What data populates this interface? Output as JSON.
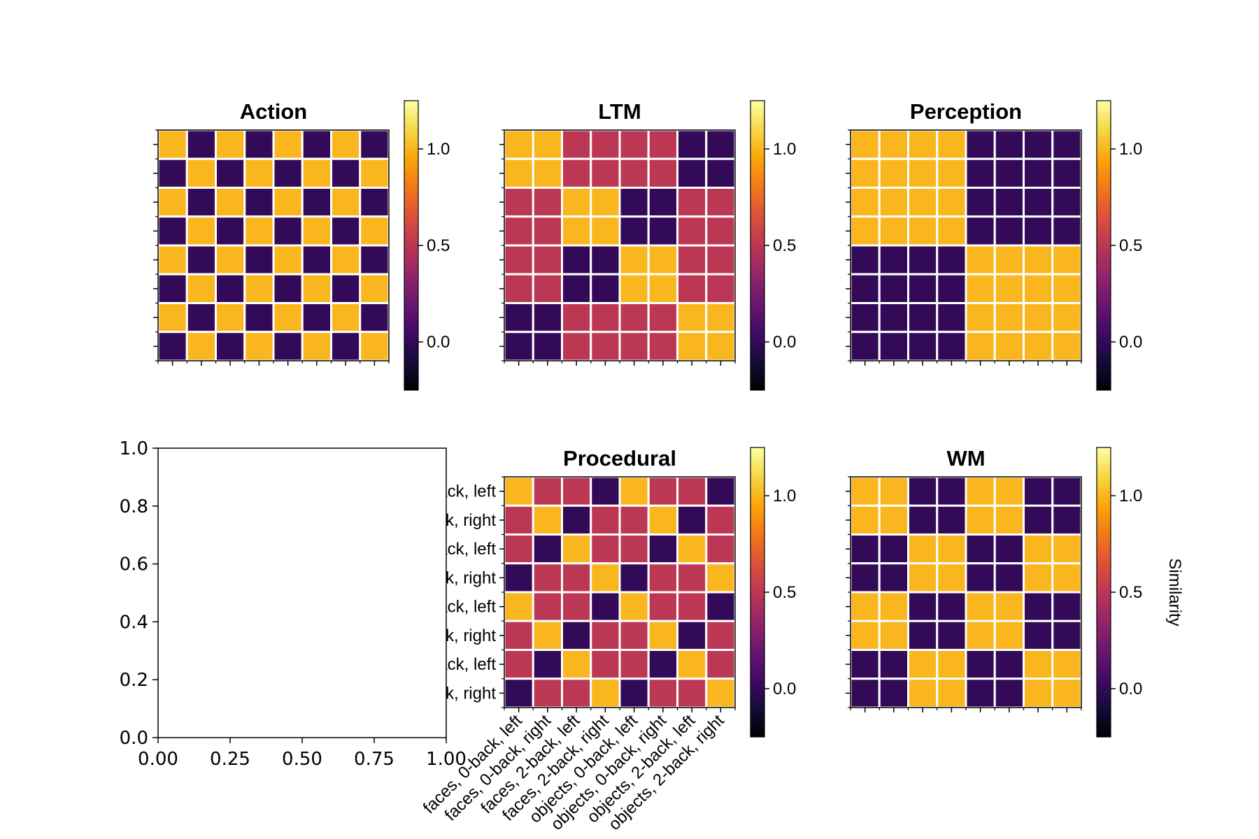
{
  "chart_data": [
    {
      "type": "heatmap",
      "title": "Action",
      "categories": [
        "faces, 0-back, left",
        "faces, 0-back, right",
        "faces, 2-back, left",
        "faces, 2-back, right",
        "objects, 0-back, left",
        "objects, 0-back, right",
        "objects, 2-back, left",
        "objects, 2-back, right"
      ],
      "values": [
        [
          1,
          0,
          1,
          0,
          1,
          0,
          1,
          0
        ],
        [
          0,
          1,
          0,
          1,
          0,
          1,
          0,
          1
        ],
        [
          1,
          0,
          1,
          0,
          1,
          0,
          1,
          0
        ],
        [
          0,
          1,
          0,
          1,
          0,
          1,
          0,
          1
        ],
        [
          1,
          0,
          1,
          0,
          1,
          0,
          1,
          0
        ],
        [
          0,
          1,
          0,
          1,
          0,
          1,
          0,
          1
        ],
        [
          1,
          0,
          1,
          0,
          1,
          0,
          1,
          0
        ],
        [
          0,
          1,
          0,
          1,
          0,
          1,
          0,
          1
        ]
      ],
      "colorbar": {
        "ticks": [
          "0.0",
          "0.5",
          "1.0"
        ],
        "ylim": [
          -0.25,
          1.25
        ],
        "label": ""
      }
    },
    {
      "type": "heatmap",
      "title": "LTM",
      "categories": [
        "faces, 0-back, left",
        "faces, 0-back, right",
        "faces, 2-back, left",
        "faces, 2-back, right",
        "objects, 0-back, left",
        "objects, 0-back, right",
        "objects, 2-back, left",
        "objects, 2-back, right"
      ],
      "values": [
        [
          1,
          1,
          0.5,
          0.5,
          0.5,
          0.5,
          0,
          0
        ],
        [
          1,
          1,
          0.5,
          0.5,
          0.5,
          0.5,
          0,
          0
        ],
        [
          0.5,
          0.5,
          1,
          1,
          0,
          0,
          0.5,
          0.5
        ],
        [
          0.5,
          0.5,
          1,
          1,
          0,
          0,
          0.5,
          0.5
        ],
        [
          0.5,
          0.5,
          0,
          0,
          1,
          1,
          0.5,
          0.5
        ],
        [
          0.5,
          0.5,
          0,
          0,
          1,
          1,
          0.5,
          0.5
        ],
        [
          0,
          0,
          0.5,
          0.5,
          0.5,
          0.5,
          1,
          1
        ],
        [
          0,
          0,
          0.5,
          0.5,
          0.5,
          0.5,
          1,
          1
        ]
      ],
      "colorbar": {
        "ticks": [
          "0.0",
          "0.5",
          "1.0"
        ],
        "ylim": [
          -0.25,
          1.25
        ],
        "label": ""
      }
    },
    {
      "type": "heatmap",
      "title": "Perception",
      "categories": [
        "faces, 0-back, left",
        "faces, 0-back, right",
        "faces, 2-back, left",
        "faces, 2-back, right",
        "objects, 0-back, left",
        "objects, 0-back, right",
        "objects, 2-back, left",
        "objects, 2-back, right"
      ],
      "values": [
        [
          1,
          1,
          1,
          1,
          0,
          0,
          0,
          0
        ],
        [
          1,
          1,
          1,
          1,
          0,
          0,
          0,
          0
        ],
        [
          1,
          1,
          1,
          1,
          0,
          0,
          0,
          0
        ],
        [
          1,
          1,
          1,
          1,
          0,
          0,
          0,
          0
        ],
        [
          0,
          0,
          0,
          0,
          1,
          1,
          1,
          1
        ],
        [
          0,
          0,
          0,
          0,
          1,
          1,
          1,
          1
        ],
        [
          0,
          0,
          0,
          0,
          1,
          1,
          1,
          1
        ],
        [
          0,
          0,
          0,
          0,
          1,
          1,
          1,
          1
        ]
      ],
      "colorbar": {
        "ticks": [
          "0.0",
          "0.5",
          "1.0"
        ],
        "ylim": [
          -0.25,
          1.25
        ],
        "label": ""
      }
    },
    {
      "type": "heatmap",
      "title": "Procedural",
      "categories": [
        "faces, 0-back, left",
        "faces, 0-back, right",
        "faces, 2-back, left",
        "faces, 2-back, right",
        "objects, 0-back, left",
        "objects, 0-back, right",
        "objects, 2-back, left",
        "objects, 2-back, right"
      ],
      "values": [
        [
          1,
          0.5,
          0.5,
          0,
          1,
          0.5,
          0.5,
          0
        ],
        [
          0.5,
          1,
          0,
          0.5,
          0.5,
          1,
          0,
          0.5
        ],
        [
          0.5,
          0,
          1,
          0.5,
          0.5,
          0,
          1,
          0.5
        ],
        [
          0,
          0.5,
          0.5,
          1,
          0,
          0.5,
          0.5,
          1
        ],
        [
          1,
          0.5,
          0.5,
          0,
          1,
          0.5,
          0.5,
          0
        ],
        [
          0.5,
          1,
          0,
          0.5,
          0.5,
          1,
          0,
          0.5
        ],
        [
          0.5,
          0,
          1,
          0.5,
          0.5,
          0,
          1,
          0.5
        ],
        [
          0,
          0.5,
          0.5,
          1,
          0,
          0.5,
          0.5,
          1
        ]
      ],
      "colorbar": {
        "ticks": [
          "0.0",
          "0.5",
          "1.0"
        ],
        "ylim": [
          -0.25,
          1.25
        ],
        "label": ""
      }
    },
    {
      "type": "heatmap",
      "title": "WM",
      "categories": [
        "faces, 0-back, left",
        "faces, 0-back, right",
        "faces, 2-back, left",
        "faces, 2-back, right",
        "objects, 0-back, left",
        "objects, 0-back, right",
        "objects, 2-back, left",
        "objects, 2-back, right"
      ],
      "values": [
        [
          1,
          1,
          0,
          0,
          1,
          1,
          0,
          0
        ],
        [
          1,
          1,
          0,
          0,
          1,
          1,
          0,
          0
        ],
        [
          0,
          0,
          1,
          1,
          0,
          0,
          1,
          1
        ],
        [
          0,
          0,
          1,
          1,
          0,
          0,
          1,
          1
        ],
        [
          1,
          1,
          0,
          0,
          1,
          1,
          0,
          0
        ],
        [
          1,
          1,
          0,
          0,
          1,
          1,
          0,
          0
        ],
        [
          0,
          0,
          1,
          1,
          0,
          0,
          1,
          1
        ],
        [
          0,
          0,
          1,
          1,
          0,
          0,
          1,
          1
        ]
      ],
      "colorbar": {
        "ticks": [
          "0.0",
          "0.5",
          "1.0"
        ],
        "ylim": [
          -0.25,
          1.25
        ],
        "label": "Similarity"
      }
    },
    {
      "type": "line",
      "title": "",
      "xlim": [
        0,
        1
      ],
      "ylim": [
        0,
        1
      ],
      "xticks": [
        "0.00",
        "0.25",
        "0.50",
        "0.75",
        "1.00"
      ],
      "yticks": [
        "0.0",
        "0.2",
        "0.4",
        "0.6",
        "0.8",
        "1.0"
      ],
      "series": []
    }
  ]
}
